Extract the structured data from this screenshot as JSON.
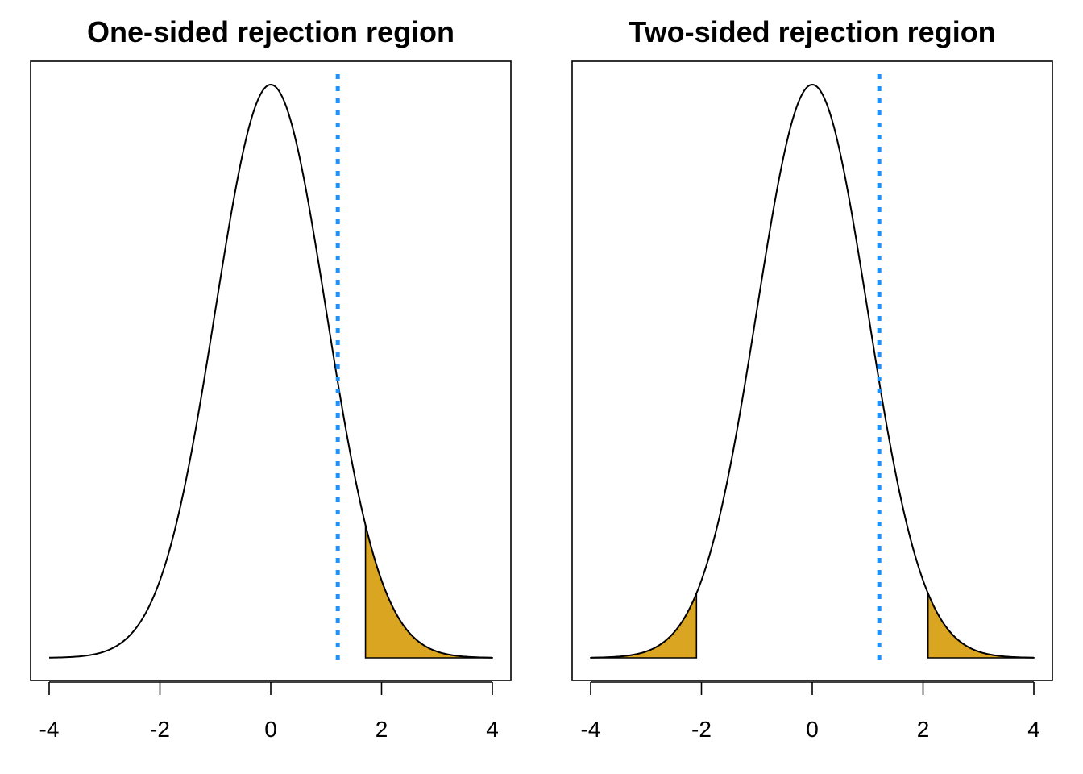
{
  "colors": {
    "curve": "#000000",
    "rejection_fill": "#DAA520",
    "reference_line": "#1E90FF",
    "frame": "#000000",
    "background": "#FFFFFF"
  },
  "chart_data": [
    {
      "type": "area",
      "title": "One-sided rejection region",
      "xlabel": "",
      "ylabel": "",
      "xlim": [
        -4,
        4
      ],
      "x_ticks": [
        -4,
        -2,
        0,
        2,
        4
      ],
      "x_tick_labels": [
        "-4",
        "-2",
        "0",
        "2",
        "4"
      ],
      "y_axis_shown": false,
      "grid": false,
      "curve": "standard normal density",
      "rejection_regions": [
        [
          1.71,
          4
        ]
      ],
      "reference_line": {
        "x": 1.21,
        "style": "dotted"
      }
    },
    {
      "type": "area",
      "title": "Two-sided rejection region",
      "xlabel": "",
      "ylabel": "",
      "xlim": [
        -4,
        4
      ],
      "x_ticks": [
        -4,
        -2,
        0,
        2,
        4
      ],
      "x_tick_labels": [
        "-4",
        "-2",
        "0",
        "2",
        "4"
      ],
      "y_axis_shown": false,
      "grid": false,
      "curve": "standard normal density",
      "rejection_regions": [
        [
          -4,
          -2.09
        ],
        [
          2.09,
          4
        ]
      ],
      "reference_line": {
        "x": 1.21,
        "style": "dotted"
      }
    }
  ]
}
